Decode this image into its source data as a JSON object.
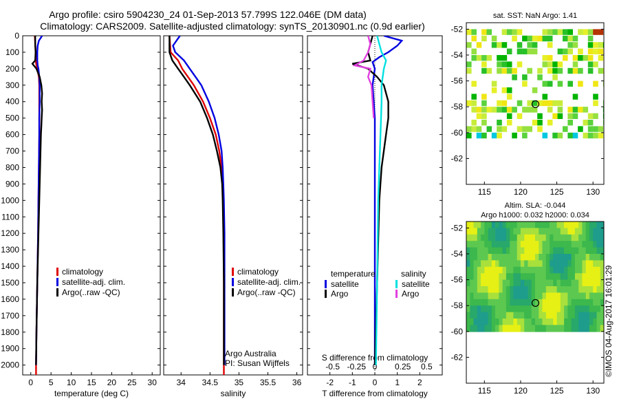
{
  "header": {
    "title_line1": "Argo profile: csiro 5904230_24 01-Sep-2013 57.799S 122.046E (DM data)",
    "title_line2": "Climatology: CARS2009. Satellite-adjusted climatology: synTS_20130901.nc (0.9d earlier)"
  },
  "colors": {
    "climatology": "#e00000",
    "satellite": "#0000e0",
    "argo": "#000000",
    "satellite_s": "#00e0e0",
    "argo_s": "#e040e0"
  },
  "depth_ticks": [
    0,
    100,
    200,
    300,
    400,
    500,
    600,
    700,
    800,
    900,
    1000,
    1100,
    1200,
    1300,
    1400,
    1500,
    1600,
    1700,
    1800,
    1900,
    2000
  ],
  "chart_data": [
    {
      "type": "line",
      "xlabel": "temperature (deg C)",
      "xlim": [
        -2,
        32
      ],
      "xticks": [
        0,
        5,
        10,
        15,
        20,
        25,
        30
      ],
      "ylim": [
        2060,
        0
      ],
      "legend": [
        "climatology",
        "satellite-adj. clim.",
        "Argo(..raw -QC)"
      ],
      "series": [
        {
          "name": "climatology",
          "depth": [
            0,
            50,
            100,
            150,
            180,
            200,
            250,
            300,
            400,
            500,
            600,
            800,
            1000,
            1200,
            1500,
            1800,
            2000,
            2060
          ],
          "values": [
            1.0,
            1.1,
            1.2,
            1.2,
            1.4,
            1.6,
            2.0,
            2.1,
            2.1,
            2.1,
            2.1,
            2.0,
            1.9,
            1.8,
            1.6,
            1.4,
            1.3,
            1.3
          ]
        },
        {
          "name": "satellite-adj. clim.",
          "depth": [
            0,
            30,
            60,
            100,
            150,
            180,
            200,
            250,
            300,
            400,
            500,
            600,
            800,
            1000,
            1200,
            1500,
            1800,
            2000
          ],
          "values": [
            2.8,
            2.0,
            1.7,
            1.6,
            1.6,
            1.7,
            1.9,
            2.1,
            2.2,
            2.2,
            2.1,
            2.1,
            2.0,
            1.9,
            1.8,
            1.6,
            1.4,
            1.3
          ]
        },
        {
          "name": "Argo(..raw -QC)",
          "depth": [
            0,
            50,
            100,
            150,
            170,
            200,
            250,
            300,
            350,
            400,
            450,
            500,
            550,
            600,
            800,
            1000,
            1200,
            1500,
            1800,
            2000
          ],
          "values": [
            1.1,
            1.1,
            1.2,
            1.1,
            0.4,
            1.4,
            2.2,
            2.6,
            2.8,
            2.7,
            2.8,
            2.7,
            2.6,
            2.5,
            2.3,
            2.1,
            1.9,
            1.6,
            1.4,
            1.3
          ]
        }
      ]
    },
    {
      "type": "line",
      "xlabel": "salinity",
      "xlim": [
        33.7,
        36.1
      ],
      "xticks": [
        34,
        34.5,
        35,
        35.5,
        36
      ],
      "ylim": [
        2060,
        0
      ],
      "legend": [
        "climatology",
        "satellite-adj. clim.",
        "Argo(..raw -QC)"
      ],
      "annotation": [
        "Argo Australia",
        "PI: Susan Wijffels"
      ],
      "series": [
        {
          "name": "climatology",
          "depth": [
            0,
            100,
            150,
            200,
            250,
            300,
            400,
            500,
            600,
            700,
            800,
            900,
            1000,
            1200,
            1500,
            1800,
            2060
          ],
          "values": [
            33.8,
            33.82,
            33.95,
            34.02,
            34.12,
            34.22,
            34.38,
            34.5,
            34.6,
            34.66,
            34.7,
            34.72,
            34.73,
            34.74,
            34.74,
            34.74,
            34.74
          ]
        },
        {
          "name": "satellite-adj. clim.",
          "depth": [
            0,
            60,
            100,
            150,
            200,
            250,
            300,
            400,
            500,
            600,
            700,
            800,
            900,
            1000,
            1200,
            1500,
            1800,
            2000
          ],
          "values": [
            33.98,
            33.86,
            33.9,
            34.05,
            34.15,
            34.25,
            34.35,
            34.48,
            34.58,
            34.65,
            34.7,
            34.72,
            34.73,
            34.74,
            34.75,
            34.75,
            34.75,
            34.75
          ]
        },
        {
          "name": "Argo(..raw -QC)",
          "depth": [
            0,
            100,
            150,
            200,
            250,
            300,
            400,
            500,
            600,
            700,
            800,
            900,
            1000,
            1200,
            1500,
            1800,
            2000
          ],
          "values": [
            33.8,
            33.8,
            33.85,
            33.95,
            34.05,
            34.15,
            34.33,
            34.45,
            34.55,
            34.62,
            34.68,
            34.71,
            34.72,
            34.73,
            34.74,
            34.74,
            34.74
          ]
        }
      ]
    },
    {
      "type": "line",
      "xlabel": "T difference from climatology",
      "xlabel_top": "S difference from climatology",
      "xlim": [
        -3,
        3
      ],
      "xticks": [
        -2,
        -1,
        0,
        1,
        2
      ],
      "xticks_top": [
        "-0.5",
        "-0.25",
        "0",
        "0.25",
        "0.5"
      ],
      "ylim": [
        2060,
        0
      ],
      "legend_headers": [
        "temperature",
        "salinity"
      ],
      "legend": [
        "satellite",
        "Argo",
        "satellite",
        "Argo"
      ],
      "series": [
        {
          "name": "satellite",
          "depth": [
            0,
            30,
            60,
            100,
            130,
            160,
            200,
            300,
            500,
            1000,
            1500,
            2000
          ],
          "values": [
            0.4,
            1.2,
            1.0,
            0.6,
            0.2,
            -0.1,
            0.0,
            -0.1,
            0.0,
            0.0,
            0.0,
            0.0
          ]
        },
        {
          "name": "Argo",
          "depth": [
            0,
            50,
            100,
            150,
            170,
            200,
            250,
            300,
            400,
            500,
            600,
            800,
            1000,
            1500,
            2000
          ],
          "values": [
            -0.1,
            -0.2,
            -0.3,
            -0.2,
            -1.0,
            -0.3,
            0.1,
            0.4,
            0.6,
            0.6,
            0.5,
            0.3,
            0.2,
            0.1,
            0.0
          ]
        },
        {
          "name": "satellite",
          "depth": [
            0,
            50,
            100,
            150,
            200,
            300,
            400,
            600,
            800,
            1000,
            1500,
            2000
          ],
          "values": [
            0.1,
            0.2,
            0.3,
            0.5,
            0.4,
            0.3,
            0.3,
            0.25,
            0.2,
            0.15,
            0.1,
            0.05
          ]
        },
        {
          "name": "Argo",
          "depth": [
            0,
            50,
            100,
            150,
            180,
            200,
            250,
            300,
            400,
            500
          ],
          "values": [
            -0.3,
            -0.2,
            -0.3,
            -0.5,
            -0.9,
            -0.2,
            -0.3,
            -0.15,
            -0.1,
            -0.05
          ]
        }
      ]
    },
    {
      "type": "heatmap",
      "title": "sat. SST: NaN Argo: 1.41",
      "xlim": [
        112.5,
        131.5
      ],
      "ylim": [
        -64,
        -51.5
      ],
      "xticks": [
        115,
        120,
        125,
        130
      ],
      "yticks": [
        -52,
        -54,
        -56,
        -58,
        -60,
        -62
      ],
      "marker": [
        122.046,
        -57.799
      ]
    },
    {
      "type": "heatmap",
      "title_line1": "Altim. SLA: -0.044",
      "title_line2": "Argo h1000: 0.032 h2000: 0.034",
      "xlim": [
        112.5,
        131.5
      ],
      "ylim": [
        -64,
        -51.5
      ],
      "xticks": [
        115,
        120,
        125,
        130
      ],
      "yticks": [
        -52,
        -54,
        -56,
        -58,
        -60,
        -62
      ],
      "marker": [
        122.046,
        -57.799
      ]
    }
  ],
  "stamp": "©IMOS 04-Aug-2017 16:01:29"
}
